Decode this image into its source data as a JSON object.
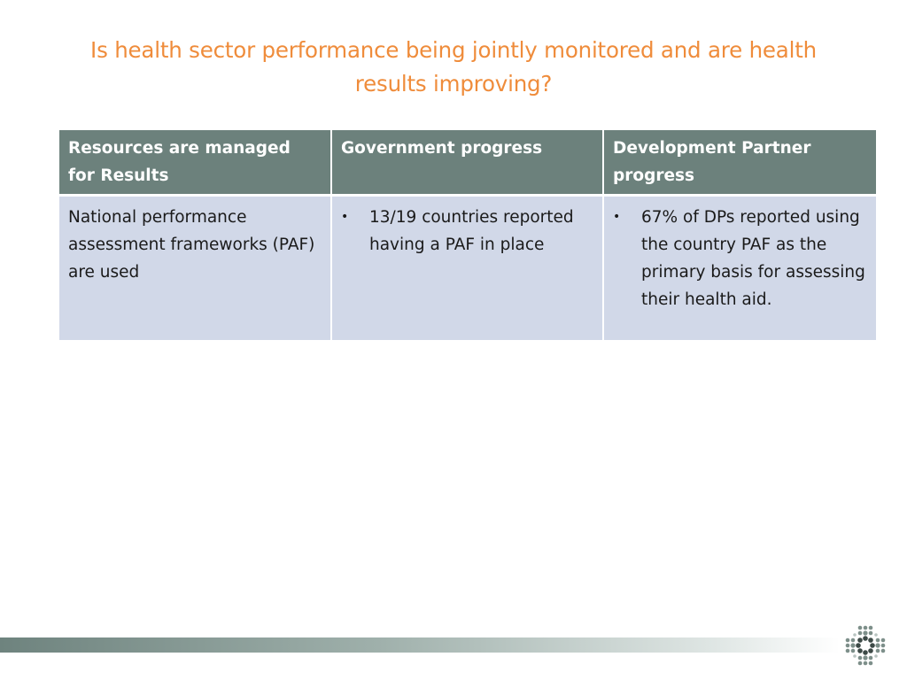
{
  "slide": {
    "title": "Is health sector performance being jointly monitored and are health results improving?"
  },
  "table": {
    "headers": [
      "Resources are managed for Results",
      "Government progress",
      "Development Partner progress"
    ],
    "rows": [
      {
        "criterion": "National performance assessment frameworks (PAF) are used",
        "government_bullet": "•",
        "government": "13/19 countries reported having a PAF in place",
        "partner_bullet": "•",
        "partner": "67% of DPs reported using the country PAF as the primary basis for assessing their health aid."
      }
    ]
  },
  "colors": {
    "title": "#ef8c3b",
    "header_bg": "#6c817c",
    "cell_bg": "#d1d8e8",
    "footer_bar": "#6e837e"
  },
  "icons": {
    "logo": "dotted-cross-logo"
  }
}
